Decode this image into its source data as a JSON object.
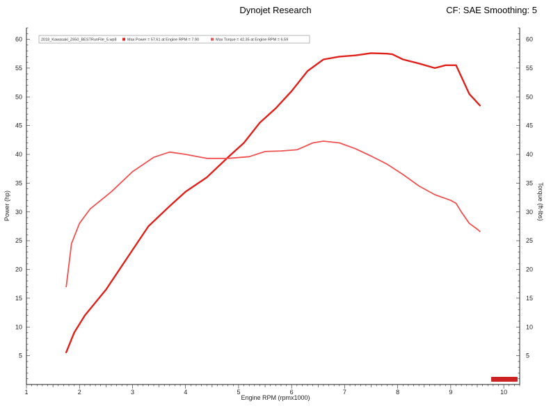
{
  "header": {
    "title": "Dynojet Research",
    "cf": "CF: SAE Smoothing: 5"
  },
  "colors": {
    "power": "#e0201a",
    "torque": "#f05050",
    "axis": "#222222",
    "grid": "#888888"
  },
  "chart_data": {
    "type": "line",
    "xlabel": "Engine RPM (rpmx1000)",
    "ylabel_left": "Power (hp)",
    "ylabel_right": "Torque (ft-lbs)",
    "xlim": [
      1,
      10.3
    ],
    "ylim": [
      0,
      62
    ],
    "x_ticks": [
      1,
      2,
      3,
      4,
      5,
      6,
      7,
      8,
      9,
      10
    ],
    "y_ticks": [
      5,
      10,
      15,
      20,
      25,
      30,
      35,
      40,
      45,
      50,
      55,
      60
    ],
    "grid": false,
    "legend_position": "top-left",
    "legend": {
      "file": "2018_Kawasaki_Z650_BESTRunFile_5.wp8",
      "power_entry": "Max Power = 57.61 at Engine RPM = 7.90",
      "torque_entry": "Max Torque = 42.35 at Engine RPM = 6.59"
    },
    "series": [
      {
        "name": "Power",
        "axis": "left",
        "x": [
          1.75,
          1.9,
          2.1,
          2.5,
          2.9,
          3.3,
          3.7,
          4.0,
          4.4,
          4.8,
          5.1,
          5.4,
          5.7,
          6.0,
          6.3,
          6.6,
          6.9,
          7.2,
          7.5,
          7.8,
          7.9,
          8.1,
          8.4,
          8.7,
          8.9,
          9.1,
          9.2,
          9.35,
          9.45,
          9.5,
          9.55
        ],
        "y": [
          5.6,
          9.0,
          12.0,
          16.5,
          22.0,
          27.5,
          31.0,
          33.5,
          36.0,
          39.5,
          42.0,
          45.5,
          48.0,
          51.0,
          54.5,
          56.5,
          57.0,
          57.2,
          57.6,
          57.5,
          57.4,
          56.5,
          55.8,
          55.0,
          55.5,
          55.5,
          53.5,
          50.5,
          49.5,
          49.0,
          48.5
        ]
      },
      {
        "name": "Torque",
        "axis": "right",
        "x": [
          1.75,
          1.85,
          2.0,
          2.2,
          2.6,
          3.0,
          3.4,
          3.7,
          4.0,
          4.4,
          4.8,
          5.2,
          5.5,
          5.8,
          6.1,
          6.4,
          6.6,
          6.9,
          7.2,
          7.5,
          7.8,
          8.1,
          8.4,
          8.7,
          9.0,
          9.1,
          9.2,
          9.35,
          9.5,
          9.55
        ],
        "y": [
          17.0,
          24.5,
          28.0,
          30.5,
          33.5,
          37.0,
          39.5,
          40.4,
          40.0,
          39.3,
          39.3,
          39.6,
          40.5,
          40.6,
          40.8,
          42.0,
          42.3,
          42.0,
          41.0,
          39.7,
          38.3,
          36.5,
          34.5,
          33.0,
          32.0,
          31.5,
          30.0,
          28.0,
          27.0,
          26.6
        ]
      }
    ]
  }
}
